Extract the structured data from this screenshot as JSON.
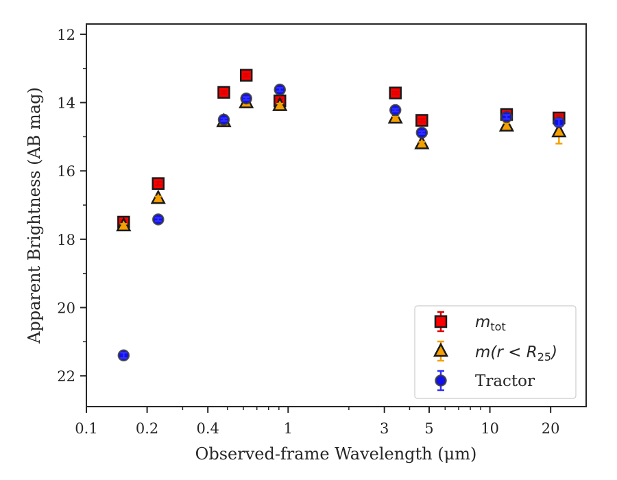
{
  "chart_data": {
    "type": "scatter",
    "xlabel": "Observed-frame Wavelength (μm)",
    "ylabel": "Apparent Brightness (AB mag)",
    "xscale": "log",
    "xlim": [
      0.1,
      30
    ],
    "ylim": [
      22.9,
      11.7
    ],
    "y_inverted": true,
    "x_major_ticks": [
      0.1,
      0.2,
      0.4,
      1,
      3,
      5,
      10,
      20
    ],
    "x_tick_labels": [
      "0.1",
      "0.2",
      "0.4",
      "1",
      "3",
      "5",
      "10",
      "20"
    ],
    "y_major_ticks": [
      12,
      14,
      16,
      18,
      20,
      22
    ],
    "y_tick_labels": [
      "12",
      "14",
      "16",
      "18",
      "20",
      "22"
    ],
    "grid": false,
    "legend_position": "lower-right",
    "series": [
      {
        "name": "m_tot",
        "legend_main": "m",
        "legend_sub": "tot",
        "marker": "square",
        "color": "#ff0000",
        "errcolor": "#dd0000",
        "x": [
          0.153,
          0.227,
          0.48,
          0.62,
          0.91,
          3.4,
          4.6,
          12.1,
          22.0
        ],
        "y": [
          17.5,
          16.37,
          13.7,
          13.2,
          13.95,
          13.72,
          14.52,
          14.35,
          14.45
        ],
        "yerr": [
          0.05,
          0.05,
          0.03,
          0.03,
          0.05,
          0.03,
          0.03,
          0.06,
          0.08
        ]
      },
      {
        "name": "m(r < R_25)",
        "legend_main": "m(r < R",
        "legend_sub": "25",
        "legend_tail": ")",
        "marker": "triangle",
        "color": "#f5a000",
        "errcolor": "#f5a000",
        "x": [
          0.153,
          0.227,
          0.48,
          0.62,
          0.91,
          3.4,
          4.6,
          12.1,
          22.0
        ],
        "y": [
          17.6,
          16.8,
          14.55,
          14.0,
          14.08,
          14.45,
          15.2,
          14.68,
          14.85
        ],
        "yerr": [
          0.05,
          0.05,
          0.03,
          0.03,
          0.05,
          0.03,
          0.05,
          0.08,
          0.35
        ]
      },
      {
        "name": "Tractor",
        "legend_main": "Tractor",
        "marker": "circle",
        "color": "#1010ee",
        "errcolor": "#3030ff",
        "x": [
          0.153,
          0.227,
          0.48,
          0.62,
          0.91,
          3.4,
          4.6,
          12.1,
          22.0
        ],
        "y": [
          21.4,
          17.42,
          14.5,
          13.88,
          13.62,
          14.22,
          14.88,
          14.42,
          14.58
        ],
        "yerr": [
          0.08,
          0.05,
          0.03,
          0.03,
          0.05,
          0.03,
          0.03,
          0.06,
          0.1
        ]
      }
    ]
  }
}
